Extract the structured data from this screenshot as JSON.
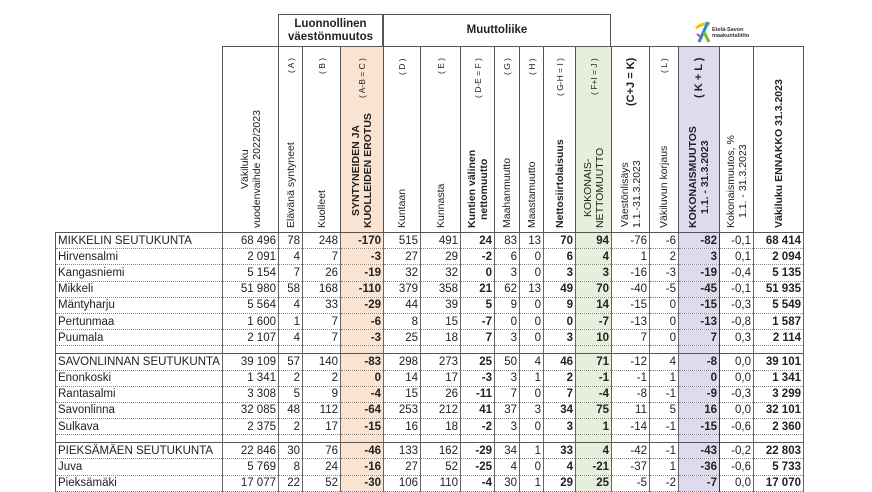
{
  "logo": {
    "line1": "Etelä-Savon",
    "line2": "maakuntaliitto"
  },
  "groups": {
    "natural": "Luonnollinen väestönmuutos",
    "migration": "Muuttoliike"
  },
  "columns": [
    {
      "label": "Väkiluku\nvuodenvaihde 2022/2023",
      "formula": ""
    },
    {
      "label": "Elävänä syntyneet",
      "formula": "( A )"
    },
    {
      "label": "Kuolleet",
      "formula": "( B )"
    },
    {
      "label": "SYNTYNEIDEN JA\nKUOLLEIDEN EROTUS",
      "formula": "( A-B = C )"
    },
    {
      "label": "Kuntaan",
      "formula": "( D )"
    },
    {
      "label": "Kunnasta",
      "formula": "( E )"
    },
    {
      "label": "Kuntien välinen\nnettomuutto",
      "formula": "( D-E = F )"
    },
    {
      "label": "Maahanmuutto",
      "formula": "( G )"
    },
    {
      "label": "Maastamuutto",
      "formula": "( H )"
    },
    {
      "label": "Nettosiirtolaisuus",
      "formula": "( G-H = I )"
    },
    {
      "label": "KOKONAIS-\nNETTOMUUTTO",
      "formula": "( F+I = J )"
    },
    {
      "label": "Väestönlisäys\n1.1.-31.3.2023",
      "formula": "(C+J = K)"
    },
    {
      "label": "Väkiluvun korjaus",
      "formula": "( L )"
    },
    {
      "label": "KOKONAISMUUTOS\n1.1. - 31.3.2023",
      "formula": "( K + L )"
    },
    {
      "label": "Kokonaismuutos, %\n1.1. - 31.3.2023",
      "formula": ""
    },
    {
      "label": "Väkiluku ENNAKKO 31.3.2023",
      "formula": ""
    }
  ],
  "rows": [
    {
      "name": "MIKKELIN SEUTUKUNTA",
      "region": true,
      "v": [
        "68 496",
        "78",
        "248",
        "-170",
        "515",
        "491",
        "24",
        "83",
        "13",
        "70",
        "94",
        "-76",
        "-6",
        "-82",
        "-0,1",
        "68 414"
      ]
    },
    {
      "name": "Hirvensalmi",
      "v": [
        "2 091",
        "4",
        "7",
        "-3",
        "27",
        "29",
        "-2",
        "6",
        "0",
        "6",
        "4",
        "1",
        "2",
        "3",
        "0,1",
        "2 094"
      ]
    },
    {
      "name": "Kangasniemi",
      "v": [
        "5 154",
        "7",
        "26",
        "-19",
        "32",
        "32",
        "0",
        "3",
        "0",
        "3",
        "3",
        "-16",
        "-3",
        "-19",
        "-0,4",
        "5 135"
      ]
    },
    {
      "name": "Mikkeli",
      "v": [
        "51 980",
        "58",
        "168",
        "-110",
        "379",
        "358",
        "21",
        "62",
        "13",
        "49",
        "70",
        "-40",
        "-5",
        "-45",
        "-0,1",
        "51 935"
      ]
    },
    {
      "name": "Mäntyharju",
      "v": [
        "5 564",
        "4",
        "33",
        "-29",
        "44",
        "39",
        "5",
        "9",
        "0",
        "9",
        "14",
        "-15",
        "0",
        "-15",
        "-0,3",
        "5 549"
      ]
    },
    {
      "name": "Pertunmaa",
      "v": [
        "1 600",
        "1",
        "7",
        "-6",
        "8",
        "15",
        "-7",
        "0",
        "0",
        "0",
        "-7",
        "-13",
        "0",
        "-13",
        "-0,8",
        "1 587"
      ]
    },
    {
      "name": "Puumala",
      "v": [
        "2 107",
        "4",
        "7",
        "-3",
        "25",
        "18",
        "7",
        "3",
        "0",
        "3",
        "10",
        "7",
        "0",
        "7",
        "0,3",
        "2 114"
      ]
    },
    {
      "name": "SAVONLINNAN SEUTUKUNTA",
      "region": true,
      "v": [
        "39 109",
        "57",
        "140",
        "-83",
        "298",
        "273",
        "25",
        "50",
        "4",
        "46",
        "71",
        "-12",
        "4",
        "-8",
        "0,0",
        "39 101"
      ]
    },
    {
      "name": "Enonkoski",
      "v": [
        "1 341",
        "2",
        "2",
        "0",
        "14",
        "17",
        "-3",
        "3",
        "1",
        "2",
        "-1",
        "-1",
        "1",
        "0",
        "0,0",
        "1 341"
      ]
    },
    {
      "name": "Rantasalmi",
      "v": [
        "3 308",
        "5",
        "9",
        "-4",
        "15",
        "26",
        "-11",
        "7",
        "0",
        "7",
        "-4",
        "-8",
        "-1",
        "-9",
        "-0,3",
        "3 299"
      ]
    },
    {
      "name": "Savonlinna",
      "v": [
        "32 085",
        "48",
        "112",
        "-64",
        "253",
        "212",
        "41",
        "37",
        "3",
        "34",
        "75",
        "11",
        "5",
        "16",
        "0,0",
        "32 101"
      ]
    },
    {
      "name": "Sulkava",
      "v": [
        "2 375",
        "2",
        "17",
        "-15",
        "16",
        "18",
        "-2",
        "3",
        "0",
        "3",
        "1",
        "-14",
        "-1",
        "-15",
        "-0,6",
        "2 360"
      ]
    },
    {
      "name": "PIEKSÄMÄEN SEUTUKUNTA",
      "region": true,
      "v": [
        "22 846",
        "30",
        "76",
        "-46",
        "133",
        "162",
        "-29",
        "34",
        "1",
        "33",
        "4",
        "-42",
        "-1",
        "-43",
        "-0,2",
        "22 803"
      ]
    },
    {
      "name": "Juva",
      "v": [
        "5 769",
        "8",
        "24",
        "-16",
        "27",
        "52",
        "-25",
        "4",
        "0",
        "4",
        "-21",
        "-37",
        "1",
        "-36",
        "-0,6",
        "5 733"
      ]
    },
    {
      "name": "Pieksämäki",
      "v": [
        "17 077",
        "22",
        "52",
        "-30",
        "106",
        "110",
        "-4",
        "30",
        "1",
        "29",
        "25",
        "-5",
        "-2",
        "-7",
        "0,0",
        "17 070"
      ]
    }
  ],
  "colors": {
    "natural_diff": "#fbe3d2",
    "net_migration": "#e8eedc",
    "total_change": "#dedbef"
  }
}
